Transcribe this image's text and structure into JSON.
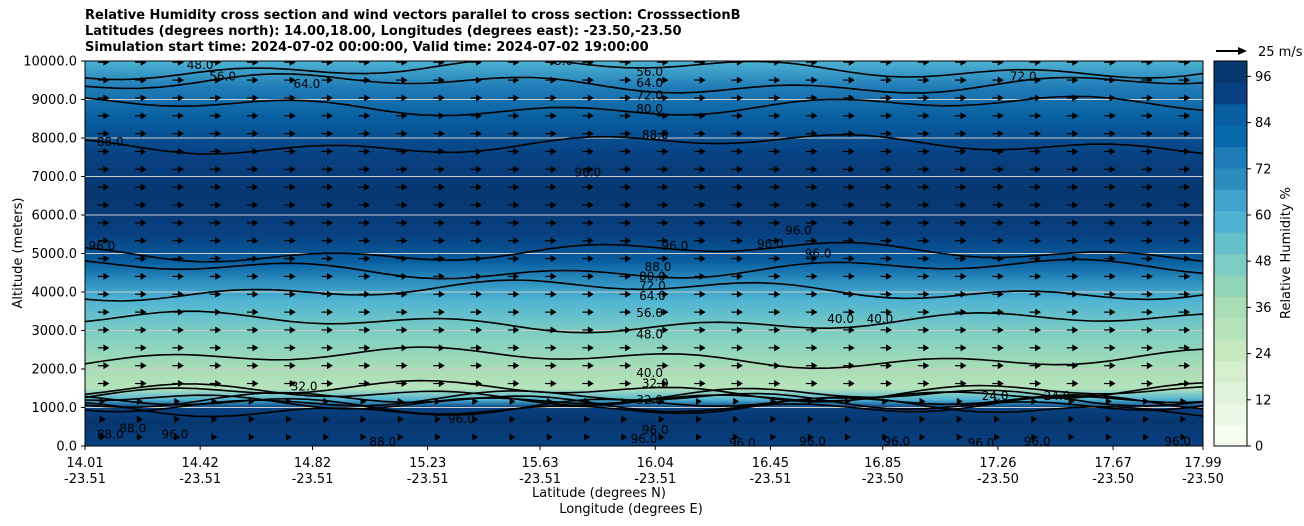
{
  "title_lines": [
    "Relative Humidity cross section and wind vectors parallel to cross section: CrosssectionB",
    "Latitudes (degrees north): 14.00,18.00, Longitudes (degrees east): -23.50,-23.50",
    "Simulation start time: 2024-07-02 00:00:00, Valid time: 2024-07-02 19:00:00"
  ],
  "chart_data": {
    "type": "heatmap",
    "xlabel_primary": "Latitude (degrees N)",
    "xlabel_secondary": "Longitude (degrees E)",
    "ylabel": "Altitude (meters)",
    "ylim": [
      0,
      10000
    ],
    "xlim": [
      14.01,
      17.99
    ],
    "x_ticks": [
      {
        "x": 14.01,
        "lat": "14.01",
        "lon": "-23.51"
      },
      {
        "x": 14.42,
        "lat": "14.42",
        "lon": "-23.51"
      },
      {
        "x": 14.82,
        "lat": "14.82",
        "lon": "-23.51"
      },
      {
        "x": 15.23,
        "lat": "15.23",
        "lon": "-23.51"
      },
      {
        "x": 15.63,
        "lat": "15.63",
        "lon": "-23.51"
      },
      {
        "x": 16.04,
        "lat": "16.04",
        "lon": "-23.51"
      },
      {
        "x": 16.45,
        "lat": "16.45",
        "lon": "-23.51"
      },
      {
        "x": 16.85,
        "lat": "16.85",
        "lon": "-23.50"
      },
      {
        "x": 17.26,
        "lat": "17.26",
        "lon": "-23.50"
      },
      {
        "x": 17.67,
        "lat": "17.67",
        "lon": "-23.50"
      },
      {
        "x": 17.99,
        "lat": "17.99",
        "lon": "-23.50"
      }
    ],
    "y_ticks": [
      {
        "v": 0,
        "label": "0.0"
      },
      {
        "v": 1000,
        "label": "1000.0"
      },
      {
        "v": 2000,
        "label": "2000.0"
      },
      {
        "v": 3000,
        "label": "3000.0"
      },
      {
        "v": 4000,
        "label": "4000.0"
      },
      {
        "v": 5000,
        "label": "5000.0"
      },
      {
        "v": 6000,
        "label": "6000.0"
      },
      {
        "v": 7000,
        "label": "7000.0"
      },
      {
        "v": 8000,
        "label": "8000.0"
      },
      {
        "v": 9000,
        "label": "9000.0"
      },
      {
        "v": 10000,
        "label": "10000.0"
      }
    ],
    "grid": "horizontal",
    "colorbar": {
      "label": "Relative Humidity %",
      "range": [
        0,
        100
      ],
      "step": 4,
      "ticks": [
        {
          "v": 0,
          "label": "0"
        },
        {
          "v": 12,
          "label": "12"
        },
        {
          "v": 24,
          "label": "24"
        },
        {
          "v": 36,
          "label": "36"
        },
        {
          "v": 48,
          "label": "48"
        },
        {
          "v": 60,
          "label": "60"
        },
        {
          "v": 72,
          "label": "72"
        },
        {
          "v": 84,
          "label": "84"
        },
        {
          "v": 96,
          "label": "96"
        }
      ],
      "colors": [
        "#f7fcf0",
        "#ecf8e6",
        "#e0f3db",
        "#d4eece",
        "#c7e9c0",
        "#b6e3bb",
        "#a8ddb5",
        "#92d4b9",
        "#7bccc4",
        "#66c0c9",
        "#4eb3d3",
        "#3ea2cb",
        "#2b8cbe",
        "#1f7bb6",
        "#0868ac",
        "#075ea0",
        "#084081",
        "#07376f"
      ]
    },
    "humidity_profile": [
      {
        "alt": 0,
        "rh": 92
      },
      {
        "alt": 600,
        "rh": 96
      },
      {
        "alt": 1000,
        "rh": 90
      },
      {
        "alt": 1200,
        "rh": 60
      },
      {
        "alt": 1500,
        "rh": 32
      },
      {
        "alt": 2000,
        "rh": 38
      },
      {
        "alt": 3000,
        "rh": 45
      },
      {
        "alt": 3800,
        "rh": 56
      },
      {
        "alt": 4300,
        "rh": 72
      },
      {
        "alt": 4800,
        "rh": 86
      },
      {
        "alt": 5500,
        "rh": 92
      },
      {
        "alt": 6500,
        "rh": 95
      },
      {
        "alt": 7500,
        "rh": 90
      },
      {
        "alt": 8500,
        "rh": 84
      },
      {
        "alt": 9300,
        "rh": 74
      },
      {
        "alt": 10000,
        "rh": 60
      }
    ],
    "contour_labels": [
      {
        "text": "48.0",
        "lat": 14.42,
        "alt": 9900
      },
      {
        "text": "56.0",
        "lat": 14.5,
        "alt": 9600
      },
      {
        "text": "64.0",
        "lat": 14.8,
        "alt": 9400
      },
      {
        "text": "48.0",
        "lat": 15.7,
        "alt": 10000
      },
      {
        "text": "56.0",
        "lat": 16.02,
        "alt": 9720
      },
      {
        "text": "64.0",
        "lat": 16.02,
        "alt": 9430
      },
      {
        "text": "72.0",
        "lat": 16.02,
        "alt": 9100
      },
      {
        "text": "80.0",
        "lat": 16.02,
        "alt": 8750
      },
      {
        "text": "88.0",
        "lat": 16.04,
        "alt": 8080
      },
      {
        "text": "72.0",
        "lat": 17.35,
        "alt": 9600
      },
      {
        "text": "88.0",
        "lat": 14.1,
        "alt": 7900
      },
      {
        "text": "96.0",
        "lat": 15.8,
        "alt": 7100
      },
      {
        "text": "96.0",
        "lat": 14.07,
        "alt": 5200
      },
      {
        "text": "96.0",
        "lat": 16.11,
        "alt": 5200
      },
      {
        "text": "96.0",
        "lat": 16.45,
        "alt": 5250
      },
      {
        "text": "96.0",
        "lat": 16.55,
        "alt": 5600
      },
      {
        "text": "96.0",
        "lat": 16.62,
        "alt": 5000
      },
      {
        "text": "88.0",
        "lat": 16.05,
        "alt": 4650
      },
      {
        "text": "80.0",
        "lat": 16.03,
        "alt": 4400
      },
      {
        "text": "72.0",
        "lat": 16.03,
        "alt": 4150
      },
      {
        "text": "64.0",
        "lat": 16.03,
        "alt": 3900
      },
      {
        "text": "56.0",
        "lat": 16.02,
        "alt": 3450
      },
      {
        "text": "48.0",
        "lat": 16.02,
        "alt": 2900
      },
      {
        "text": "40.0",
        "lat": 16.7,
        "alt": 3300
      },
      {
        "text": "40.0",
        "lat": 16.84,
        "alt": 3300
      },
      {
        "text": "40.0",
        "lat": 16.02,
        "alt": 1900
      },
      {
        "text": "32.0",
        "lat": 16.04,
        "alt": 1620
      },
      {
        "text": "32.0",
        "lat": 14.79,
        "alt": 1550
      },
      {
        "text": "32.0",
        "lat": 16.02,
        "alt": 1200
      },
      {
        "text": "24.0",
        "lat": 17.25,
        "alt": 1300
      },
      {
        "text": "24.0",
        "lat": 17.47,
        "alt": 1300
      },
      {
        "text": "96.0",
        "lat": 16.04,
        "alt": 420
      },
      {
        "text": "88.0",
        "lat": 14.1,
        "alt": 300
      },
      {
        "text": "88.0",
        "lat": 14.18,
        "alt": 450
      },
      {
        "text": "96.0",
        "lat": 14.33,
        "alt": 300
      },
      {
        "text": "88.0",
        "lat": 15.07,
        "alt": 100
      },
      {
        "text": "96.0",
        "lat": 15.35,
        "alt": 700
      },
      {
        "text": "96.0",
        "lat": 16.0,
        "alt": 180
      },
      {
        "text": "96.0",
        "lat": 16.35,
        "alt": 80
      },
      {
        "text": "96.0",
        "lat": 16.6,
        "alt": 120
      },
      {
        "text": "96.0",
        "lat": 16.9,
        "alt": 120
      },
      {
        "text": "96.0",
        "lat": 17.2,
        "alt": 80
      },
      {
        "text": "96.0",
        "lat": 17.4,
        "alt": 120
      },
      {
        "text": "96.0",
        "lat": 17.9,
        "alt": 120
      }
    ],
    "wind_vectors": {
      "direction": "parallel to cross section, toward increasing latitude",
      "reference_label": "25 m/s",
      "reference_speed": 25,
      "typical_speed": 12
    }
  }
}
